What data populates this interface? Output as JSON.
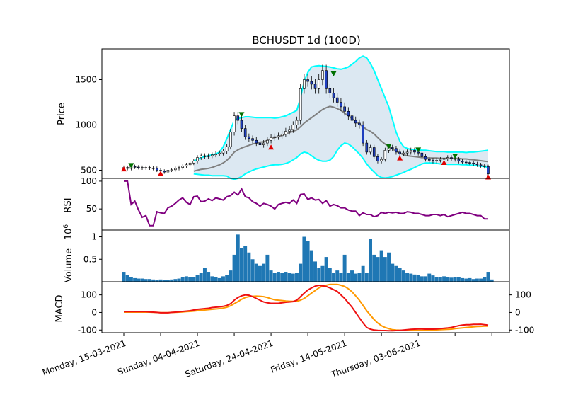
{
  "chart_data": {
    "type": "candlestick",
    "title": "BCHUSDT 1d (100D)",
    "x_tick_labels": [
      "Monday, 15-03-2021",
      "Sunday, 04-04-2021",
      "Saturday, 24-04-2021",
      "Friday, 14-05-2021",
      "Thursday, 03-06-2021"
    ],
    "x_tick_days": [
      0,
      20,
      40,
      60,
      80
    ],
    "days": 100,
    "panels": [
      {
        "id": "price",
        "ylabel": "Price",
        "ylim": [
          410,
          1840
        ],
        "yticks": [
          500,
          1000,
          1500
        ],
        "closes": [
          530,
          520,
          540,
          535,
          530,
          525,
          530,
          525,
          520,
          500,
          490,
          480,
          500,
          505,
          520,
          530,
          545,
          560,
          580,
          600,
          640,
          660,
          650,
          660,
          670,
          680,
          690,
          710,
          760,
          920,
          1100,
          1050,
          960,
          870,
          850,
          830,
          800,
          780,
          800,
          830,
          860,
          870,
          880,
          900,
          930,
          950,
          1000,
          1050,
          1400,
          1500,
          1480,
          1450,
          1400,
          1500,
          1600,
          1400,
          1350,
          1300,
          1250,
          1200,
          1150,
          1100,
          1050,
          1020,
          1000,
          800,
          700,
          750,
          650,
          600,
          620,
          720,
          750,
          740,
          700,
          680,
          690,
          700,
          720,
          700,
          690,
          650,
          620,
          610,
          600,
          610,
          620,
          630,
          640,
          630,
          620,
          600,
          590,
          585,
          580,
          570,
          560,
          550,
          540,
          460
        ],
        "bollinger_upper": [
          null,
          null,
          null,
          null,
          null,
          null,
          null,
          null,
          null,
          null,
          null,
          null,
          null,
          null,
          null,
          null,
          null,
          null,
          null,
          600,
          620,
          640,
          650,
          660,
          670,
          680,
          700,
          760,
          850,
          950,
          1050,
          1070,
          1080,
          1090,
          1090,
          1085,
          1080,
          1080,
          1080,
          1080,
          1080,
          1075,
          1080,
          1090,
          1100,
          1120,
          1140,
          1160,
          1300,
          1480,
          1580,
          1640,
          1650,
          1655,
          1650,
          1645,
          1640,
          1630,
          1620,
          1615,
          1625,
          1640,
          1670,
          1700,
          1740,
          1760,
          1740,
          1680,
          1600,
          1500,
          1400,
          1300,
          1200,
          1060,
          920,
          820,
          760,
          740,
          730,
          730,
          725,
          720,
          720,
          715,
          710,
          705,
          705,
          705,
          700,
          700,
          700,
          700,
          700,
          695,
          700,
          700,
          705,
          710,
          715,
          720
        ],
        "bollinger_middle": [
          null,
          null,
          null,
          null,
          null,
          null,
          null,
          null,
          null,
          null,
          null,
          null,
          null,
          null,
          null,
          null,
          null,
          null,
          null,
          490,
          500,
          510,
          515,
          520,
          530,
          545,
          560,
          580,
          610,
          650,
          700,
          725,
          745,
          760,
          775,
          790,
          800,
          810,
          815,
          830,
          850,
          860,
          870,
          885,
          900,
          915,
          930,
          945,
          980,
          1020,
          1050,
          1080,
          1110,
          1140,
          1170,
          1190,
          1205,
          1195,
          1180,
          1160,
          1130,
          1100,
          1070,
          1040,
          1010,
          980,
          950,
          930,
          900,
          860,
          820,
          790,
          760,
          735,
          710,
          690,
          670,
          660,
          655,
          650,
          645,
          640,
          640,
          635,
          635,
          635,
          630,
          630,
          630,
          630,
          630,
          630,
          625,
          625,
          620,
          615,
          610,
          605,
          600,
          595
        ],
        "bollinger_lower": [
          null,
          null,
          null,
          null,
          null,
          null,
          null,
          null,
          null,
          null,
          null,
          null,
          null,
          null,
          null,
          null,
          null,
          null,
          null,
          460,
          455,
          450,
          445,
          445,
          440,
          440,
          440,
          440,
          435,
          410,
          400,
          410,
          430,
          460,
          480,
          500,
          515,
          525,
          535,
          545,
          555,
          560,
          560,
          565,
          575,
          590,
          615,
          640,
          680,
          700,
          690,
          660,
          630,
          610,
          600,
          600,
          610,
          650,
          720,
          770,
          800,
          790,
          760,
          720,
          680,
          630,
          570,
          520,
          480,
          440,
          420,
          415,
          420,
          430,
          445,
          460,
          475,
          495,
          510,
          530,
          550,
          570,
          580,
          580,
          580,
          575,
          570,
          570,
          565,
          565,
          565,
          565,
          560,
          560,
          555,
          555,
          550,
          545,
          540,
          530
        ],
        "sell_signals": [
          [
            2,
            548
          ],
          [
            32,
            1110
          ],
          [
            57,
            1560
          ],
          [
            72,
            760
          ],
          [
            80,
            720
          ],
          [
            90,
            650
          ]
        ],
        "buy_signals": [
          [
            0,
            518
          ],
          [
            10,
            470
          ],
          [
            40,
            760
          ],
          [
            75,
            640
          ],
          [
            87,
            590
          ],
          [
            99,
            430
          ]
        ]
      },
      {
        "id": "rsi",
        "ylabel": "RSI",
        "ylim": [
          12,
          105
        ],
        "yticks": [
          50,
          100
        ],
        "values": [
          100,
          100,
          58,
          64,
          48,
          35,
          38,
          20,
          20,
          45,
          43,
          42,
          52,
          55,
          60,
          66,
          70,
          62,
          58,
          72,
          73,
          63,
          64,
          68,
          65,
          70,
          68,
          66,
          72,
          74,
          80,
          75,
          86,
          72,
          70,
          63,
          60,
          55,
          60,
          58,
          55,
          50,
          58,
          60,
          62,
          60,
          66,
          60,
          76,
          77,
          67,
          70,
          66,
          67,
          60,
          65,
          55,
          58,
          56,
          52,
          52,
          48,
          46,
          46,
          38,
          43,
          40,
          40,
          36,
          38,
          44,
          42,
          44,
          43,
          44,
          42,
          42,
          45,
          44,
          42,
          42,
          40,
          38,
          38,
          40,
          40,
          38,
          40,
          36,
          38,
          40,
          42,
          44,
          42,
          42,
          40,
          38,
          38,
          32,
          32
        ]
      },
      {
        "id": "volume",
        "ylabel": "Volume",
        "exponent_label": "6",
        "ylim": [
          0,
          1.15
        ],
        "yticks": [
          0.5,
          1.0
        ],
        "values": [
          0.22,
          0.15,
          0.1,
          0.08,
          0.07,
          0.07,
          0.06,
          0.06,
          0.05,
          0.04,
          0.05,
          0.04,
          0.04,
          0.05,
          0.06,
          0.07,
          0.1,
          0.12,
          0.1,
          0.11,
          0.15,
          0.2,
          0.3,
          0.22,
          0.12,
          0.1,
          0.08,
          0.12,
          0.15,
          0.25,
          0.6,
          1.05,
          0.75,
          0.8,
          0.65,
          0.5,
          0.4,
          0.35,
          0.4,
          0.6,
          0.25,
          0.2,
          0.22,
          0.2,
          0.22,
          0.2,
          0.18,
          0.2,
          0.4,
          1.0,
          0.9,
          0.7,
          0.45,
          0.3,
          0.35,
          0.55,
          0.3,
          0.2,
          0.25,
          0.2,
          0.6,
          0.2,
          0.25,
          0.18,
          0.2,
          0.35,
          0.2,
          0.95,
          0.6,
          0.55,
          0.7,
          0.55,
          0.65,
          0.4,
          0.35,
          0.3,
          0.25,
          0.2,
          0.18,
          0.16,
          0.15,
          0.12,
          0.12,
          0.18,
          0.14,
          0.1,
          0.1,
          0.12,
          0.1,
          0.09,
          0.1,
          0.1,
          0.08,
          0.07,
          0.08,
          0.06,
          0.07,
          0.07,
          0.1,
          0.22,
          0.05
        ]
      },
      {
        "id": "macd",
        "ylabel": "MACD",
        "ylim": [
          -115,
          175
        ],
        "yticks": [
          -100,
          0,
          100
        ],
        "right_yticks": [
          -100,
          0,
          100
        ],
        "macd": [
          5,
          5,
          5,
          5,
          5,
          5,
          5,
          3,
          2,
          0,
          -2,
          -2,
          -2,
          0,
          2,
          4,
          6,
          8,
          10,
          14,
          18,
          20,
          22,
          24,
          28,
          30,
          32,
          35,
          40,
          50,
          70,
          85,
          95,
          100,
          98,
          90,
          80,
          70,
          60,
          55,
          52,
          52,
          52,
          55,
          58,
          60,
          62,
          70,
          90,
          110,
          128,
          140,
          150,
          155,
          152,
          148,
          140,
          130,
          120,
          100,
          80,
          55,
          30,
          0,
          -30,
          -60,
          -85,
          -95,
          -100,
          -102,
          -103,
          -103,
          -104,
          -104,
          -103,
          -102,
          -100,
          -98,
          -96,
          -95,
          -94,
          -94,
          -95,
          -95,
          -95,
          -94,
          -92,
          -90,
          -88,
          -85,
          -80,
          -75,
          -72,
          -70,
          -70,
          -68,
          -68,
          -67,
          -70,
          -72
        ],
        "signal": [
          2,
          2,
          2,
          2,
          2,
          2,
          2,
          2,
          1,
          0,
          -1,
          -1,
          -1,
          0,
          1,
          2,
          3,
          5,
          6,
          8,
          10,
          12,
          14,
          16,
          18,
          20,
          22,
          25,
          30,
          38,
          50,
          62,
          75,
          85,
          90,
          92,
          93,
          92,
          90,
          85,
          78,
          72,
          70,
          68,
          65,
          64,
          63,
          64,
          70,
          80,
          95,
          110,
          125,
          140,
          150,
          155,
          160,
          160,
          160,
          155,
          148,
          135,
          118,
          95,
          70,
          40,
          10,
          -15,
          -40,
          -60,
          -75,
          -85,
          -92,
          -98,
          -100,
          -101,
          -102,
          -103,
          -103,
          -102,
          -102,
          -102,
          -101,
          -101,
          -100,
          -99,
          -98,
          -97,
          -96,
          -95,
          -92,
          -90,
          -88,
          -86,
          -84,
          -82,
          -80,
          -79,
          -78,
          -78
        ]
      }
    ]
  }
}
